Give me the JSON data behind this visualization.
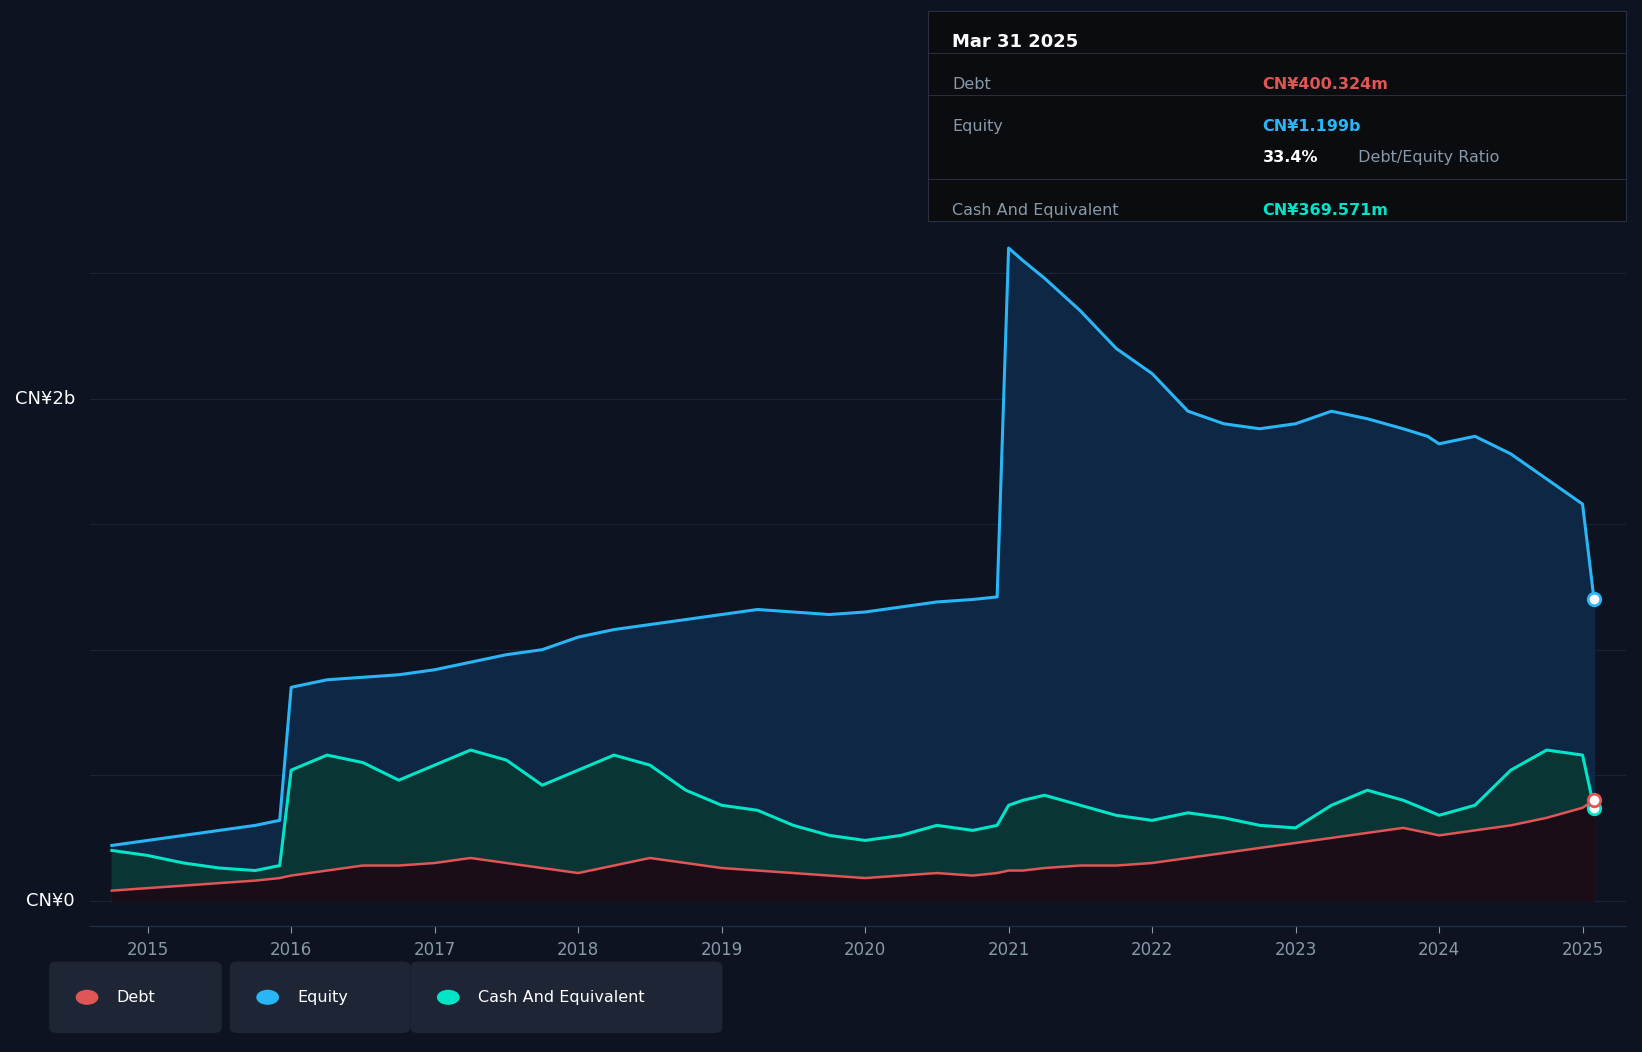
{
  "background_color": "#0d1320",
  "plot_bg_color": "#0d1320",
  "ylabel_2b": "CN¥2b",
  "ylabel_0": "CN¥0",
  "x_ticks": [
    2015,
    2016,
    2017,
    2018,
    2019,
    2020,
    2021,
    2022,
    2023,
    2024,
    2025
  ],
  "tooltip_date": "Mar 31 2025",
  "tooltip_debt_label": "Debt",
  "tooltip_debt_value": "CN¥400.324m",
  "tooltip_equity_label": "Equity",
  "tooltip_equity_value": "CN¥1.199b",
  "tooltip_ratio": "33.4% Debt/Equity Ratio",
  "tooltip_ratio_label": "33.4%",
  "tooltip_cash_label": "Cash And Equivalent",
  "tooltip_cash_value": "CN¥369.571m",
  "debt_color": "#e05555",
  "equity_color": "#29b6f6",
  "cash_color": "#00e5c8",
  "equity_fill_color": "#0d2744",
  "cash_fill_color": "#0a3535",
  "debt_fill_color": "#1a0d18",
  "grid_color": "#1e2d45",
  "text_color": "#ffffff",
  "label_color": "#8899aa",
  "tooltip_bg": "#0a0c10",
  "tooltip_border": "#2a3040",
  "legend_bg": "#1e2535",
  "years": [
    2014.75,
    2015.0,
    2015.25,
    2015.5,
    2015.75,
    2015.92,
    2016.0,
    2016.25,
    2016.5,
    2016.75,
    2017.0,
    2017.25,
    2017.5,
    2017.75,
    2018.0,
    2018.25,
    2018.5,
    2018.75,
    2019.0,
    2019.25,
    2019.5,
    2019.75,
    2020.0,
    2020.25,
    2020.5,
    2020.75,
    2020.92,
    2021.0,
    2021.1,
    2021.25,
    2021.5,
    2021.75,
    2022.0,
    2022.25,
    2022.5,
    2022.75,
    2023.0,
    2023.25,
    2023.5,
    2023.75,
    2023.92,
    2024.0,
    2024.25,
    2024.5,
    2024.75,
    2025.0,
    2025.08
  ],
  "equity": [
    0.22,
    0.24,
    0.26,
    0.28,
    0.3,
    0.32,
    0.85,
    0.88,
    0.89,
    0.9,
    0.92,
    0.95,
    0.98,
    1.0,
    1.05,
    1.08,
    1.1,
    1.12,
    1.14,
    1.16,
    1.15,
    1.14,
    1.15,
    1.17,
    1.19,
    1.2,
    1.21,
    2.6,
    2.55,
    2.48,
    2.35,
    2.2,
    2.1,
    1.95,
    1.9,
    1.88,
    1.9,
    1.95,
    1.92,
    1.88,
    1.85,
    1.82,
    1.85,
    1.78,
    1.68,
    1.58,
    1.2
  ],
  "cash": [
    0.2,
    0.18,
    0.15,
    0.13,
    0.12,
    0.14,
    0.52,
    0.58,
    0.55,
    0.48,
    0.54,
    0.6,
    0.56,
    0.46,
    0.52,
    0.58,
    0.54,
    0.44,
    0.38,
    0.36,
    0.3,
    0.26,
    0.24,
    0.26,
    0.3,
    0.28,
    0.3,
    0.38,
    0.4,
    0.42,
    0.38,
    0.34,
    0.32,
    0.35,
    0.33,
    0.3,
    0.29,
    0.38,
    0.44,
    0.4,
    0.36,
    0.34,
    0.38,
    0.52,
    0.6,
    0.58,
    0.37
  ],
  "debt": [
    0.04,
    0.05,
    0.06,
    0.07,
    0.08,
    0.09,
    0.1,
    0.12,
    0.14,
    0.14,
    0.15,
    0.17,
    0.15,
    0.13,
    0.11,
    0.14,
    0.17,
    0.15,
    0.13,
    0.12,
    0.11,
    0.1,
    0.09,
    0.1,
    0.11,
    0.1,
    0.11,
    0.12,
    0.12,
    0.13,
    0.14,
    0.14,
    0.15,
    0.17,
    0.19,
    0.21,
    0.23,
    0.25,
    0.27,
    0.29,
    0.27,
    0.26,
    0.28,
    0.3,
    0.33,
    0.37,
    0.4
  ],
  "ylim_max": 2.75,
  "ylim_min": -0.1,
  "xlim_min": 2014.6,
  "xlim_max": 2025.3
}
